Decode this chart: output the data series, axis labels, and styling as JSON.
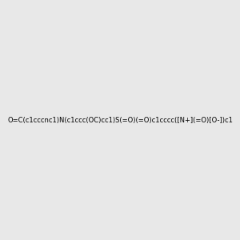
{
  "smiles": "O=C(c1cccnc1)N(c1ccc(OC)cc1)S(=O)(=O)c1cccc([N+](=O)[O-])c1",
  "title": "",
  "background_color": "#e8e8e8",
  "figsize": [
    3.0,
    3.0
  ],
  "dpi": 100
}
